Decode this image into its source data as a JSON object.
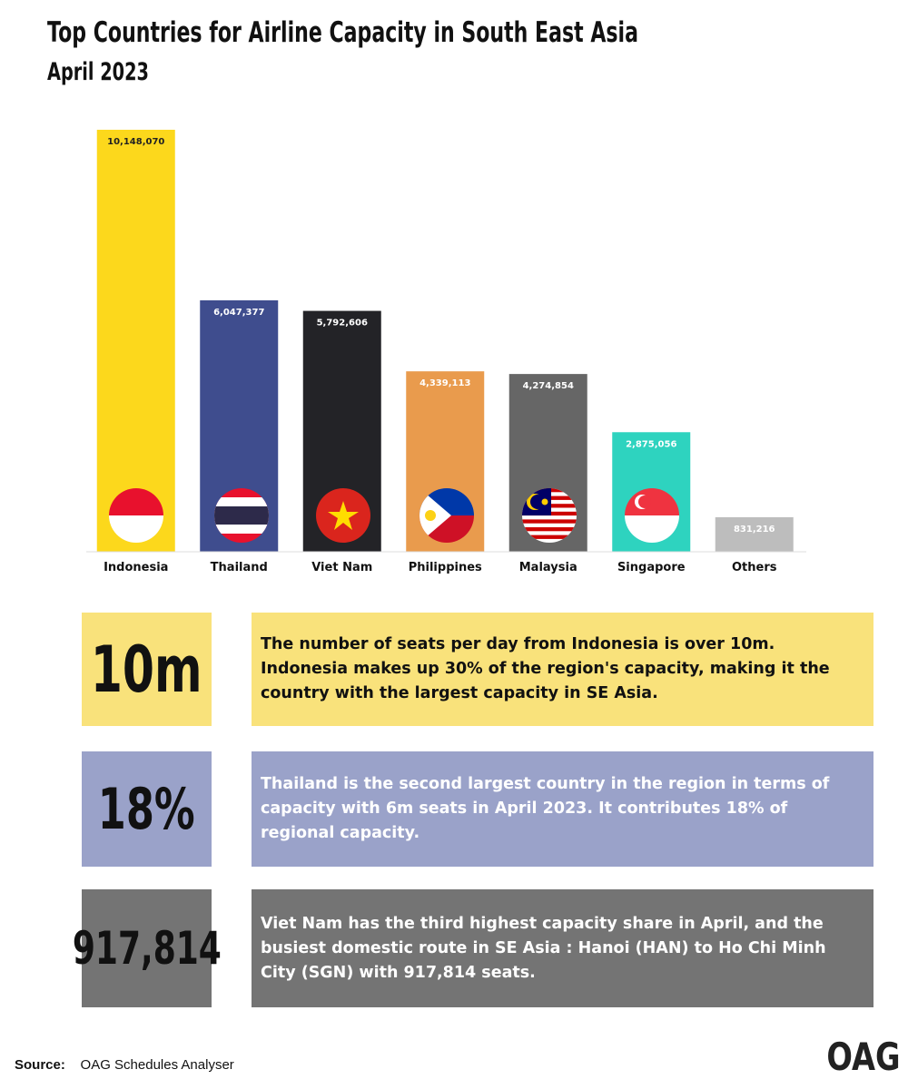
{
  "chart_data": {
    "type": "bar",
    "title": "Top Countries for Airline Capacity in South East Asia",
    "subtitle": "April 2023",
    "categories": [
      "Indonesia",
      "Thailand",
      "Viet Nam",
      "Philippines",
      "Malaysia",
      "Singapore",
      "Others"
    ],
    "values": [
      10148070,
      6047377,
      5792606,
      4339113,
      4274854,
      2875056,
      831216
    ],
    "value_labels": [
      "10,148,070",
      "6,047,377",
      "5,792,606",
      "4,339,113",
      "4,274,854",
      "2,875,056",
      "831,216"
    ],
    "colors": [
      "#fcd81c",
      "#3f4d8e",
      "#232327",
      "#e99b4d",
      "#666666",
      "#2ed3bf",
      "#bdbdbd"
    ]
  },
  "panels": [
    {
      "stat": "10m",
      "text": "The number of seats per day from Indonesia is over 10m. Indonesia makes up 30% of the region's capacity, making it the country with the largest capacity in SE Asia."
    },
    {
      "stat": "18%",
      "text": "Thailand is the second largest country in the region in terms of capacity with 6m seats in April 2023. It contributes 18% of regional capacity."
    },
    {
      "stat": "917,814",
      "text": "Viet Nam has the third highest capacity share in April, and the busiest domestic route in SE Asia : Hanoi (HAN) to Ho Chi Minh City (SGN) with 917,814 seats."
    }
  ],
  "source": {
    "label": "Source:",
    "text": "OAG Schedules Analyser"
  },
  "logo": "OAG"
}
